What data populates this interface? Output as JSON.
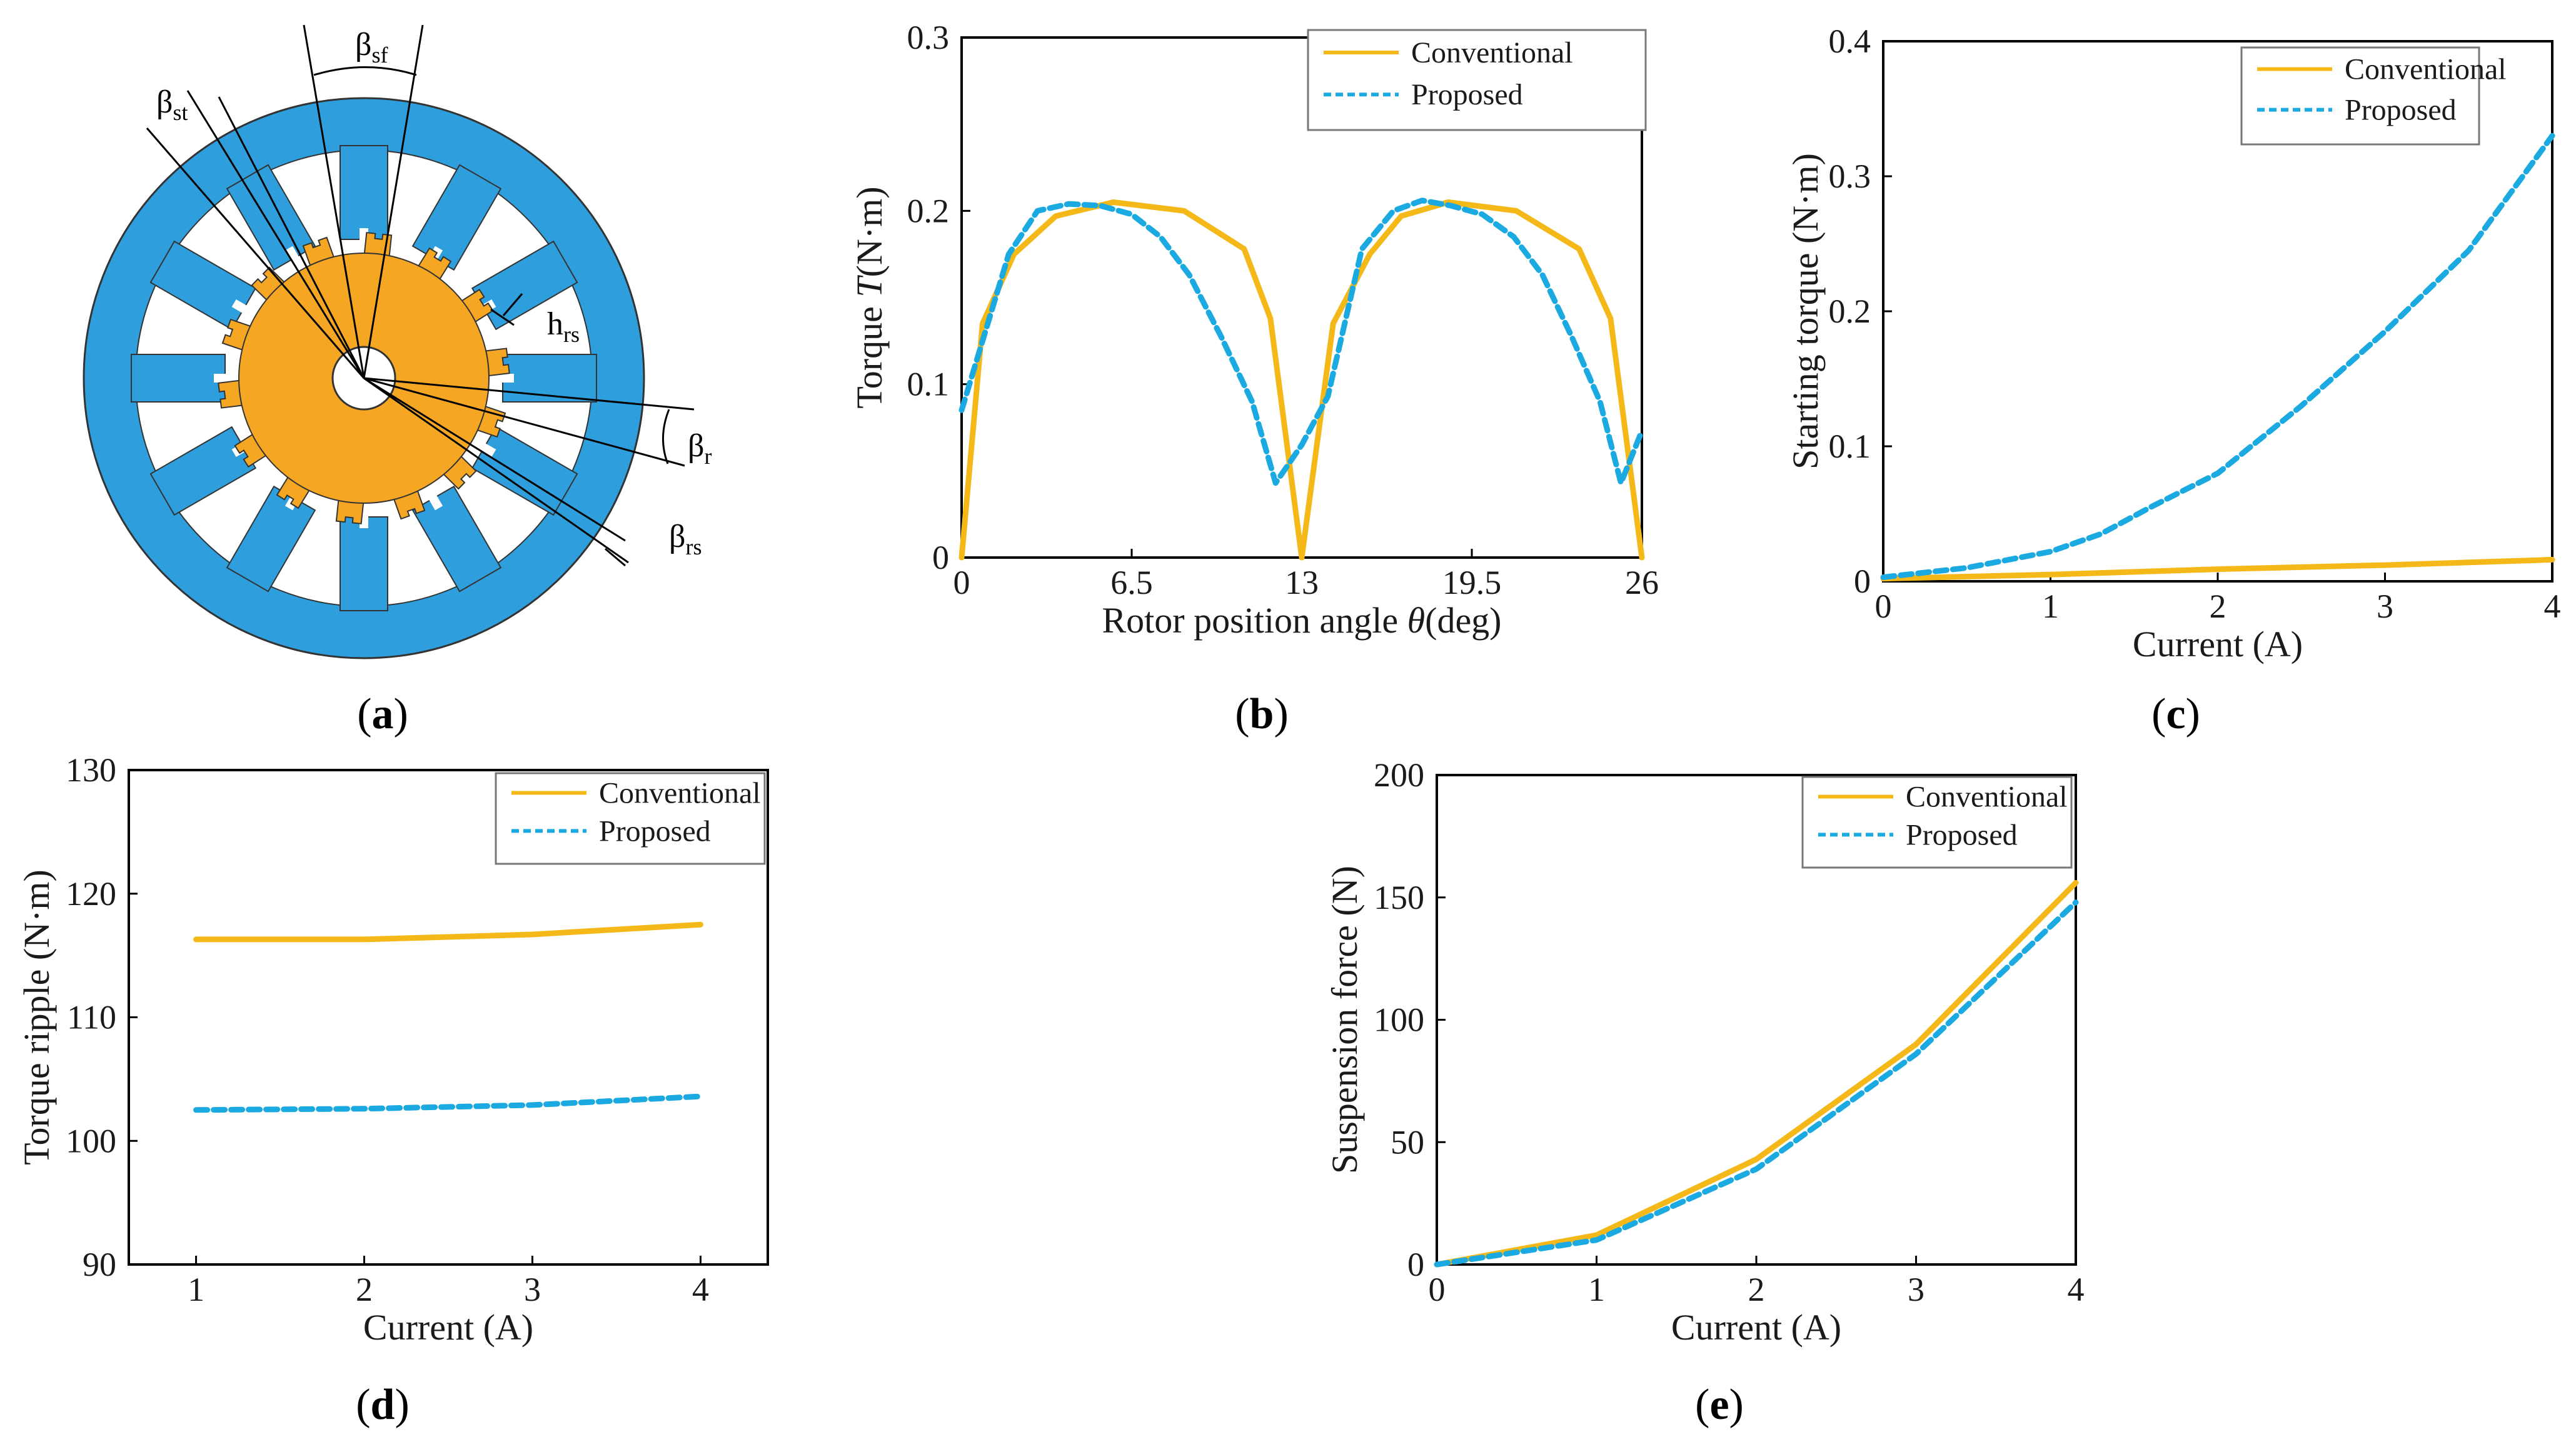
{
  "colors": {
    "conventional": "#F5B819",
    "proposed": "#1BA9E1",
    "stator": "#2E9FDC",
    "rotor": "#F5A623"
  },
  "panels": [
    "a",
    "b",
    "c",
    "d",
    "e"
  ],
  "diagram": {
    "labels": {
      "bsf": "β",
      "bsf_sub": "sf",
      "bst": "β",
      "bst_sub": "st",
      "hrs": "h",
      "hrs_sub": "rs",
      "br": "β",
      "br_sub": "r",
      "brs": "β",
      "brs_sub": "rs"
    }
  },
  "chart_data": [
    {
      "id": "b",
      "type": "line",
      "xlabel_pre": "Rotor position angle ",
      "xlabel_italic": "θ",
      "xlabel_post": "(deg)",
      "ylabel_pre": "Torque ",
      "ylabel_italic": "T",
      "ylabel_post": "(N·m)",
      "xlim": [
        0,
        26
      ],
      "ylim": [
        0,
        0.3
      ],
      "xticks": [
        0,
        6.5,
        13,
        19.5,
        26
      ],
      "xtick_labels": [
        "0",
        "6.5",
        "13",
        "19.5",
        "26"
      ],
      "yticks": [
        0,
        0.1,
        0.2,
        0.3
      ],
      "ytick_labels": [
        "0",
        "0.1",
        "0.2",
        "0.3"
      ],
      "legend": [
        "Conventional",
        "Proposed"
      ],
      "series": [
        {
          "name": "Conventional",
          "x": [
            0,
            0.8,
            2,
            3.6,
            5.8,
            8.5,
            10.8,
            11.8,
            13,
            14.2,
            15.6,
            16.8,
            18.6,
            21.2,
            23.6,
            24.8,
            26
          ],
          "y": [
            0,
            0.135,
            0.175,
            0.197,
            0.205,
            0.2,
            0.178,
            0.138,
            0,
            0.135,
            0.175,
            0.197,
            0.205,
            0.2,
            0.178,
            0.138,
            0
          ]
        },
        {
          "name": "Proposed",
          "x": [
            0,
            0.7,
            1.8,
            2.9,
            4.1,
            5.3,
            6.5,
            7.6,
            8.7,
            9.9,
            11.1,
            12,
            13,
            14,
            15.3,
            16.5,
            17.6,
            18.7,
            19.9,
            21.1,
            22.2,
            23.3,
            24.4,
            25.2,
            26
          ],
          "y": [
            0.085,
            0.12,
            0.175,
            0.2,
            0.204,
            0.203,
            0.198,
            0.185,
            0.163,
            0.128,
            0.09,
            0.043,
            0.065,
            0.093,
            0.178,
            0.2,
            0.206,
            0.203,
            0.198,
            0.185,
            0.163,
            0.128,
            0.09,
            0.043,
            0.073
          ]
        }
      ]
    },
    {
      "id": "c",
      "type": "line",
      "xlabel": "Current (A)",
      "ylabel": "Starting torque (N·m)",
      "xlim": [
        0,
        4
      ],
      "ylim": [
        0,
        0.4
      ],
      "xticks": [
        0,
        1,
        2,
        3,
        4
      ],
      "xtick_labels": [
        "0",
        "1",
        "2",
        "3",
        "4"
      ],
      "yticks": [
        0,
        0.1,
        0.2,
        0.3,
        0.4
      ],
      "ytick_labels": [
        "0",
        "0.1",
        "0.2",
        "0.3",
        "0.4"
      ],
      "legend": [
        "Conventional",
        "Proposed"
      ],
      "series": [
        {
          "name": "Conventional",
          "x": [
            0,
            1,
            2,
            3,
            4
          ],
          "y": [
            0.002,
            0.005,
            0.009,
            0.012,
            0.016
          ]
        },
        {
          "name": "Proposed",
          "x": [
            0,
            0.5,
            1,
            1.3,
            1.6,
            2,
            2.5,
            3,
            3.5,
            4
          ],
          "y": [
            0.003,
            0.01,
            0.022,
            0.035,
            0.055,
            0.08,
            0.13,
            0.185,
            0.245,
            0.33
          ]
        }
      ]
    },
    {
      "id": "d",
      "type": "line",
      "xlabel": "Current (A)",
      "ylabel": "Torque ripple (N·m)",
      "xlim": [
        0.6,
        4.4
      ],
      "ylim": [
        90,
        130
      ],
      "xticks": [
        1,
        2,
        3,
        4
      ],
      "xtick_labels": [
        "1",
        "2",
        "3",
        "4"
      ],
      "yticks": [
        90,
        100,
        110,
        120,
        130
      ],
      "ytick_labels": [
        "90",
        "100",
        "110",
        "120",
        "130"
      ],
      "legend": [
        "Conventional",
        "Proposed"
      ],
      "series": [
        {
          "name": "Conventional",
          "x": [
            1,
            2,
            3,
            4
          ],
          "y": [
            116.3,
            116.3,
            116.7,
            117.5
          ]
        },
        {
          "name": "Proposed",
          "x": [
            1,
            2,
            3,
            4
          ],
          "y": [
            102.5,
            102.6,
            102.9,
            103.6
          ]
        }
      ]
    },
    {
      "id": "e",
      "type": "line",
      "xlabel": "Current (A)",
      "ylabel": "Suspension force (N)",
      "xlim": [
        0,
        4
      ],
      "ylim": [
        0,
        200
      ],
      "xticks": [
        0,
        1,
        2,
        3,
        4
      ],
      "xtick_labels": [
        "0",
        "1",
        "2",
        "3",
        "4"
      ],
      "yticks": [
        0,
        50,
        100,
        150,
        200
      ],
      "ytick_labels": [
        "0",
        "50",
        "100",
        "150",
        "200"
      ],
      "legend": [
        "Conventional",
        "Proposed"
      ],
      "series": [
        {
          "name": "Conventional",
          "x": [
            0,
            1,
            2,
            3,
            4
          ],
          "y": [
            0,
            12,
            43,
            90,
            156
          ]
        },
        {
          "name": "Proposed",
          "x": [
            0,
            1,
            2,
            3,
            4
          ],
          "y": [
            0,
            10,
            39,
            86,
            148
          ]
        }
      ]
    }
  ]
}
